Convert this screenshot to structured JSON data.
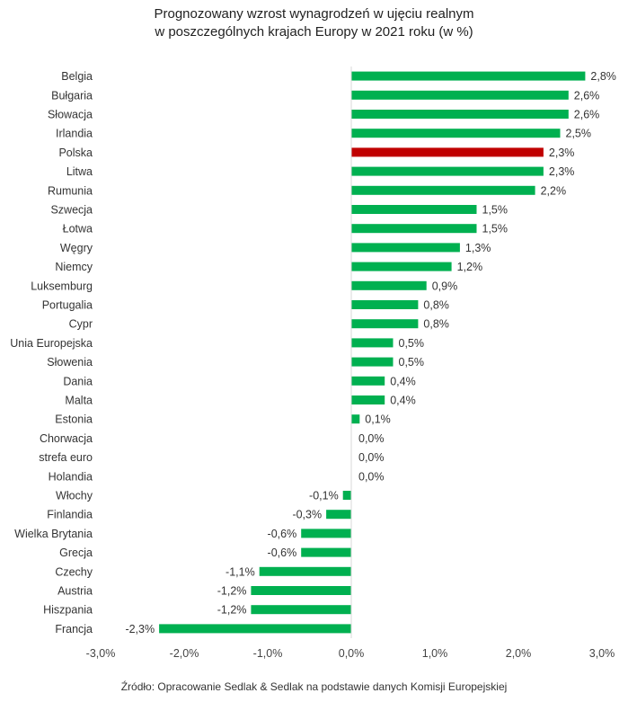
{
  "chart_data": {
    "type": "bar",
    "orientation": "horizontal",
    "title": "Prognozowany wzrost wynagrodzeń w ujęciu realnym",
    "subtitle": "w poszczególnych krajach Europy w 2021 roku (w %)",
    "xlabel": "",
    "ylabel": "",
    "xlim": [
      -3.0,
      3.0
    ],
    "xticks": [
      -3.0,
      -2.0,
      -1.0,
      0.0,
      1.0,
      2.0,
      3.0
    ],
    "xtick_labels": [
      "-3,0%",
      "-2,0%",
      "-1,0%",
      "0,0%",
      "1,0%",
      "2,0%",
      "3,0%"
    ],
    "grid": false,
    "colors": {
      "default": "#00b050",
      "highlight": "#c00000"
    },
    "highlight_category": "Polska",
    "categories": [
      "Belgia",
      "Bułgaria",
      "Słowacja",
      "Irlandia",
      "Polska",
      "Litwa",
      "Rumunia",
      "Szwecja",
      "Łotwa",
      "Węgry",
      "Niemcy",
      "Luksemburg",
      "Portugalia",
      "Cypr",
      "Unia Europejska",
      "Słowenia",
      "Dania",
      "Malta",
      "Estonia",
      "Chorwacja",
      "strefa euro",
      "Holandia",
      "Włochy",
      "Finlandia",
      "Wielka Brytania",
      "Grecja",
      "Czechy",
      "Austria",
      "Hiszpania",
      "Francja"
    ],
    "values": [
      2.8,
      2.6,
      2.6,
      2.5,
      2.3,
      2.3,
      2.2,
      1.5,
      1.5,
      1.3,
      1.2,
      0.9,
      0.8,
      0.8,
      0.5,
      0.5,
      0.4,
      0.4,
      0.1,
      0.0,
      0.0,
      0.0,
      -0.1,
      -0.3,
      -0.6,
      -0.6,
      -1.1,
      -1.2,
      -1.2,
      -2.3
    ],
    "value_labels": [
      "2,8%",
      "2,6%",
      "2,6%",
      "2,5%",
      "2,3%",
      "2,3%",
      "2,2%",
      "1,5%",
      "1,5%",
      "1,3%",
      "1,2%",
      "0,9%",
      "0,8%",
      "0,8%",
      "0,5%",
      "0,5%",
      "0,4%",
      "0,4%",
      "0,1%",
      "0,0%",
      "0,0%",
      "0,0%",
      "-0,1%",
      "-0,3%",
      "-0,6%",
      "-0,6%",
      "-1,1%",
      "-1,2%",
      "-1,2%",
      "-2,3%"
    ]
  },
  "source": "Źródło: Opracowanie Sedlak & Sedlak na podstawie danych Komisji Europejskiej"
}
